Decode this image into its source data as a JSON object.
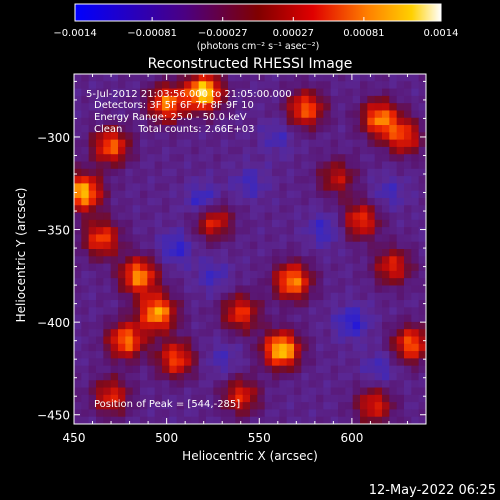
{
  "chart_data": {
    "type": "heatmap",
    "title": "Reconstructed RHESSI Image",
    "xlabel": "Heliocentric X (arcsec)",
    "ylabel": "Heliocentric Y (arcsec)",
    "xlim": [
      450,
      640
    ],
    "ylim": [
      -455,
      -266
    ],
    "xticks": [
      450,
      500,
      550,
      600
    ],
    "yticks": [
      -300,
      -350,
      -400,
      -450
    ],
    "xtick_labels": [
      "450",
      "500",
      "550",
      "600"
    ],
    "ytick_labels": [
      "−300",
      "−350",
      "−400",
      "−450"
    ],
    "colorbar": {
      "min": -0.0014,
      "max": 0.0014,
      "ticks": [
        -0.0014,
        -0.00081,
        -0.00027,
        0.00027,
        0.00081,
        0.0014
      ],
      "tick_labels": [
        "−0.0014",
        "−0.00081",
        "−0.00027",
        "0.00027",
        "0.00081",
        "0.0014"
      ],
      "unit_text": "(photons cm⁻² s⁻¹ asec⁻²)",
      "colors": [
        "#0000ff",
        "#4b0082",
        "#800000",
        "#e00000",
        "#ff8000",
        "#ffd000",
        "#ffffff"
      ]
    },
    "annotations": [
      "5-Jul-2012 21:03:56.000 to 21:05:00.000",
      "Detectors: 3F 5F 6F 7F 8F 9F 10",
      "Energy Range: 25.0 - 50.0 keV",
      "Clean     Total counts: 2.66E+03"
    ],
    "peak_label": "Position of Peak = [544,-285]",
    "peak": [
      544,
      -285
    ],
    "emission_regions": [
      {
        "x": 520,
        "y": -276,
        "level": 1.0
      },
      {
        "x": 500,
        "y": -282,
        "level": 0.75
      },
      {
        "x": 575,
        "y": -285,
        "level": 0.7
      },
      {
        "x": 615,
        "y": -290,
        "level": 0.75
      },
      {
        "x": 628,
        "y": -300,
        "level": 0.6
      },
      {
        "x": 470,
        "y": -305,
        "level": 0.7
      },
      {
        "x": 455,
        "y": -330,
        "level": 0.9
      },
      {
        "x": 465,
        "y": -355,
        "level": 0.65
      },
      {
        "x": 485,
        "y": -375,
        "level": 0.8
      },
      {
        "x": 495,
        "y": -395,
        "level": 0.85
      },
      {
        "x": 478,
        "y": -410,
        "level": 0.75
      },
      {
        "x": 505,
        "y": -420,
        "level": 0.65
      },
      {
        "x": 525,
        "y": -345,
        "level": 0.6
      },
      {
        "x": 568,
        "y": -378,
        "level": 0.8
      },
      {
        "x": 540,
        "y": -395,
        "level": 0.6
      },
      {
        "x": 562,
        "y": -415,
        "level": 0.95
      },
      {
        "x": 540,
        "y": -440,
        "level": 0.55
      },
      {
        "x": 605,
        "y": -345,
        "level": 0.6
      },
      {
        "x": 622,
        "y": -370,
        "level": 0.55
      },
      {
        "x": 632,
        "y": -412,
        "level": 0.7
      },
      {
        "x": 612,
        "y": -445,
        "level": 0.55
      },
      {
        "x": 592,
        "y": -322,
        "level": 0.45
      },
      {
        "x": 470,
        "y": -440,
        "level": 0.55
      }
    ],
    "absorption_regions": [
      {
        "x": 520,
        "y": -335,
        "level": 1.0
      },
      {
        "x": 505,
        "y": -360,
        "level": 0.8
      },
      {
        "x": 585,
        "y": -350,
        "level": 0.7
      },
      {
        "x": 600,
        "y": -400,
        "level": 0.9
      },
      {
        "x": 525,
        "y": -375,
        "level": 0.6
      },
      {
        "x": 545,
        "y": -325,
        "level": 0.6
      },
      {
        "x": 560,
        "y": -300,
        "level": 0.55
      },
      {
        "x": 530,
        "y": -420,
        "level": 0.5
      },
      {
        "x": 620,
        "y": -330,
        "level": 0.55
      },
      {
        "x": 615,
        "y": -425,
        "level": 0.6
      }
    ]
  },
  "timestamp": "12-May-2022 06:25"
}
